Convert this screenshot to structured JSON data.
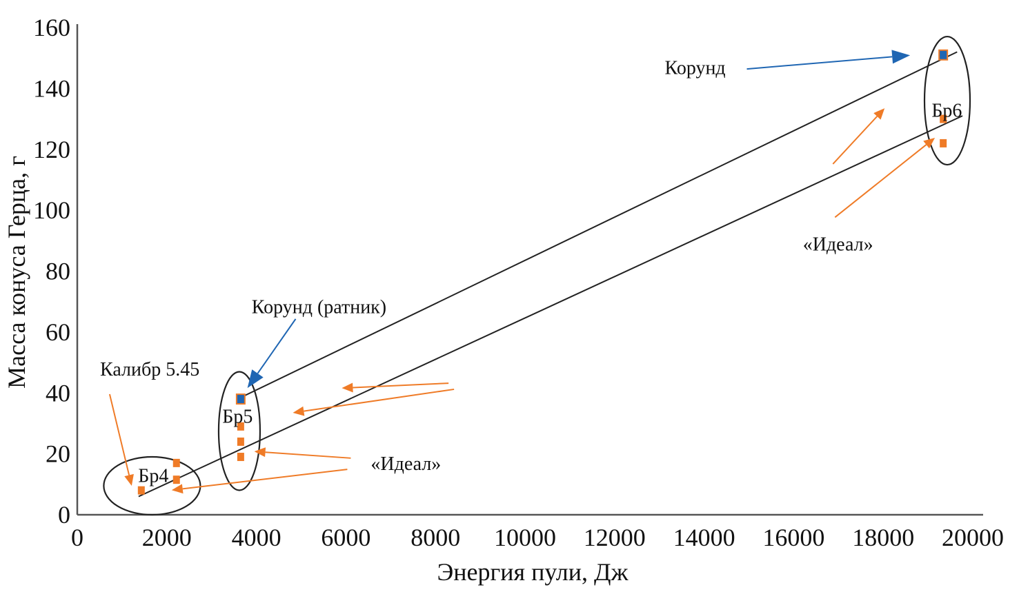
{
  "chart_data": {
    "type": "scatter",
    "title": "",
    "xlabel": "Энергия пули, Дж",
    "ylabel": "Масса конуса Герца, г",
    "xlim": [
      0,
      20000
    ],
    "ylim": [
      0,
      160
    ],
    "xticks": [
      0,
      2000,
      4000,
      6000,
      8000,
      10000,
      12000,
      14000,
      16000,
      18000,
      20000
    ],
    "yticks": [
      0,
      20,
      40,
      60,
      80,
      100,
      120,
      140,
      160
    ],
    "grid": false,
    "colors": {
      "korund": "#1f66b3",
      "ideal": "#ef7b27",
      "axis": "#555555",
      "line": "#222222"
    },
    "series": [
      {
        "name": "Корунд",
        "color": "#1f66b3",
        "points": [
          [
            3650,
            38
          ],
          [
            19340,
            151
          ]
        ]
      },
      {
        "name": "«Идеал»",
        "color": "#ef7b27",
        "points": [
          [
            1430,
            8
          ],
          [
            2215,
            17
          ],
          [
            2215,
            11.5
          ],
          [
            3650,
            29
          ],
          [
            3650,
            24
          ],
          [
            3650,
            19
          ],
          [
            19340,
            130
          ],
          [
            19340,
            122
          ]
        ]
      }
    ],
    "trend_lines": [
      {
        "name": "upper",
        "from": [
          3650,
          38.5
        ],
        "to": [
          19650,
          152
        ]
      },
      {
        "name": "lower",
        "from": [
          1370,
          6
        ],
        "to": [
          19770,
          131
        ]
      }
    ],
    "groups": [
      {
        "label": "Бр4",
        "center": [
          1670,
          9.5
        ],
        "label_at": [
          1700,
          13
        ]
      },
      {
        "label": "Бр5",
        "center": [
          3620,
          27.5
        ],
        "label_at": [
          3580,
          32.5
        ]
      },
      {
        "label": "Бр6",
        "center": [
          19430,
          136
        ],
        "label_at": [
          19420,
          133
        ]
      }
    ],
    "annotations": [
      {
        "text": "Корунд",
        "at": [
          13800,
          147
        ],
        "color": "#1f66b3",
        "arrows": [
          [
            [
              14954,
              146.4
            ],
            [
              18600,
              150.9
            ]
          ]
        ]
      },
      {
        "text": "Корунд (ратник)",
        "at": [
          5400,
          68.5
        ],
        "color": "#1f66b3",
        "arrows": [
          [
            [
              4877,
              64.3
            ],
            [
              3800,
              41.6
            ]
          ]
        ]
      },
      {
        "text": "Калибр 5.45",
        "at": [
          1620,
          48
        ],
        "color": "#ef7b27",
        "arrows": [
          [
            [
              723,
              39.6
            ],
            [
              1215,
              9.5
            ]
          ]
        ]
      },
      {
        "text": "«Идеал»",
        "at": [
          7340,
          17
        ],
        "color": "#ef7b27",
        "arrows": [
          [
            [
              6108,
              18.6
            ],
            [
              3954,
              20.8
            ]
          ],
          [
            [
              6031,
              14.9
            ],
            [
              2108,
              8.1
            ]
          ],
          [
            [
              8292,
              43.2
            ],
            [
              5908,
              41.6
            ]
          ],
          [
            [
              8415,
              41.2
            ],
            [
              4815,
              33.5
            ]
          ]
        ]
      },
      {
        "text": "«Идеал»",
        "at": [
          16990,
          89
        ],
        "color": "#ef7b27",
        "arrows": [
          [
            [
              16877,
              115.2
            ],
            [
              18031,
              133.5
            ]
          ],
          [
            [
              16923,
              97.7
            ],
            [
              19154,
              123.8
            ]
          ]
        ]
      }
    ]
  }
}
